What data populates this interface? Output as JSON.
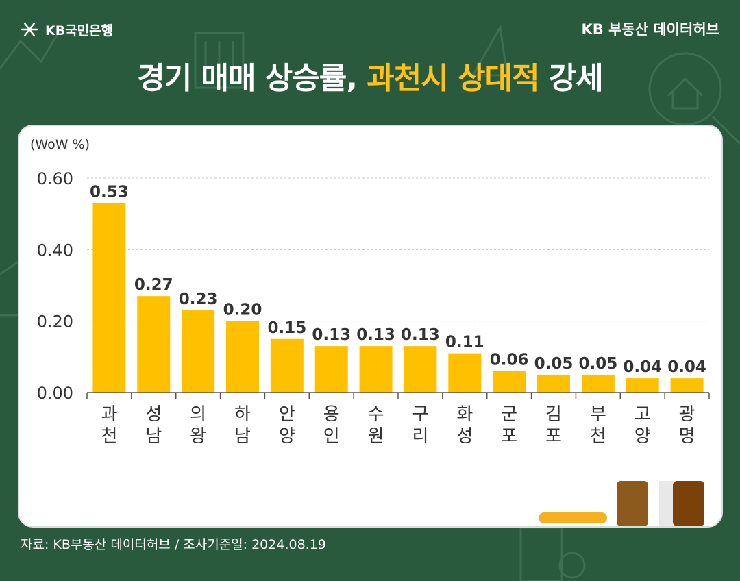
{
  "brand": {
    "bank_logo_text": "KB국민은행",
    "datahub_text": "KB 부동산  데이터허브"
  },
  "headline": {
    "part1": "경기 매매 상승률, ",
    "highlight": "과천시 상대적",
    "part2": " 강세"
  },
  "source_note": "자료: KB부동산 데이터허브 / 조사기준일: 2024.08.19",
  "colors": {
    "background": "#2a5a3e",
    "bar": "#ffc000",
    "highlight": "#ffc21a",
    "panel": "#ffffff"
  },
  "chart_data": {
    "type": "bar",
    "unit_label": "(WoW %)",
    "categories": [
      "과천",
      "성남",
      "의왕",
      "하남",
      "안양",
      "용인",
      "수원",
      "구리",
      "화성",
      "군포",
      "김포",
      "부천",
      "고양",
      "광명"
    ],
    "values": [
      0.53,
      0.27,
      0.23,
      0.2,
      0.15,
      0.13,
      0.13,
      0.13,
      0.11,
      0.06,
      0.05,
      0.05,
      0.04,
      0.04
    ],
    "value_labels": [
      "0.53",
      "0.27",
      "0.23",
      "0.20",
      "0.15",
      "0.13",
      "0.13",
      "0.13",
      "0.11",
      "0.06",
      "0.05",
      "0.05",
      "0.04",
      "0.04"
    ],
    "ylim": [
      0,
      0.6
    ],
    "yticks": [
      "0.00",
      "0.20",
      "0.40",
      "0.60"
    ],
    "grid": "dashed horizontal"
  }
}
